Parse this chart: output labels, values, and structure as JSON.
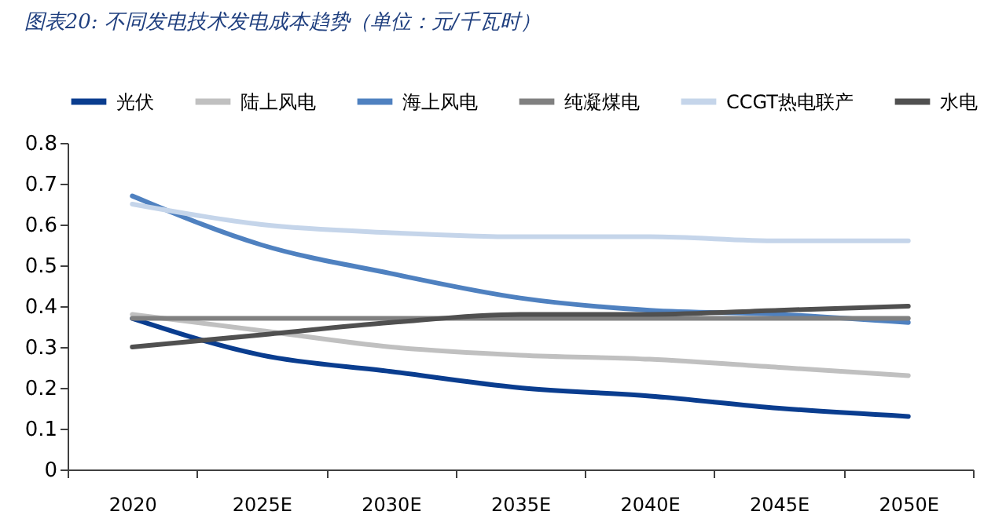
{
  "chart_data": {
    "type": "line",
    "title": "图表20: 不同发电技术发电成本趋势（单位：元/千瓦时）",
    "categories": [
      "2020",
      "2025E",
      "2030E",
      "2035E",
      "2040E",
      "2045E",
      "2050E"
    ],
    "series": [
      {
        "name": "光伏",
        "color": "#0a3d8f",
        "values": [
          0.37,
          0.28,
          0.24,
          0.2,
          0.18,
          0.15,
          0.13
        ]
      },
      {
        "name": "陆上风电",
        "color": "#c0c0c0",
        "values": [
          0.38,
          0.34,
          0.3,
          0.28,
          0.27,
          0.25,
          0.23
        ]
      },
      {
        "name": "海上风电",
        "color": "#4f81c0",
        "values": [
          0.67,
          0.55,
          0.48,
          0.42,
          0.39,
          0.38,
          0.36
        ]
      },
      {
        "name": "纯凝煤电",
        "color": "#808080",
        "values": [
          0.37,
          0.37,
          0.37,
          0.37,
          0.37,
          0.37,
          0.37
        ]
      },
      {
        "name": "CCGT热电联产",
        "color": "#c5d5ea",
        "values": [
          0.65,
          0.6,
          0.58,
          0.57,
          0.57,
          0.56,
          0.56
        ]
      },
      {
        "name": "水电",
        "color": "#505050",
        "values": [
          0.3,
          0.33,
          0.36,
          0.38,
          0.38,
          0.39,
          0.4
        ]
      }
    ],
    "ylim": [
      0,
      0.8
    ],
    "yticks": [
      0,
      0.1,
      0.2,
      0.3,
      0.4,
      0.5,
      0.6,
      0.7,
      0.8
    ],
    "grid": false,
    "legend": "top",
    "marker": "none",
    "line_style": "solid"
  }
}
